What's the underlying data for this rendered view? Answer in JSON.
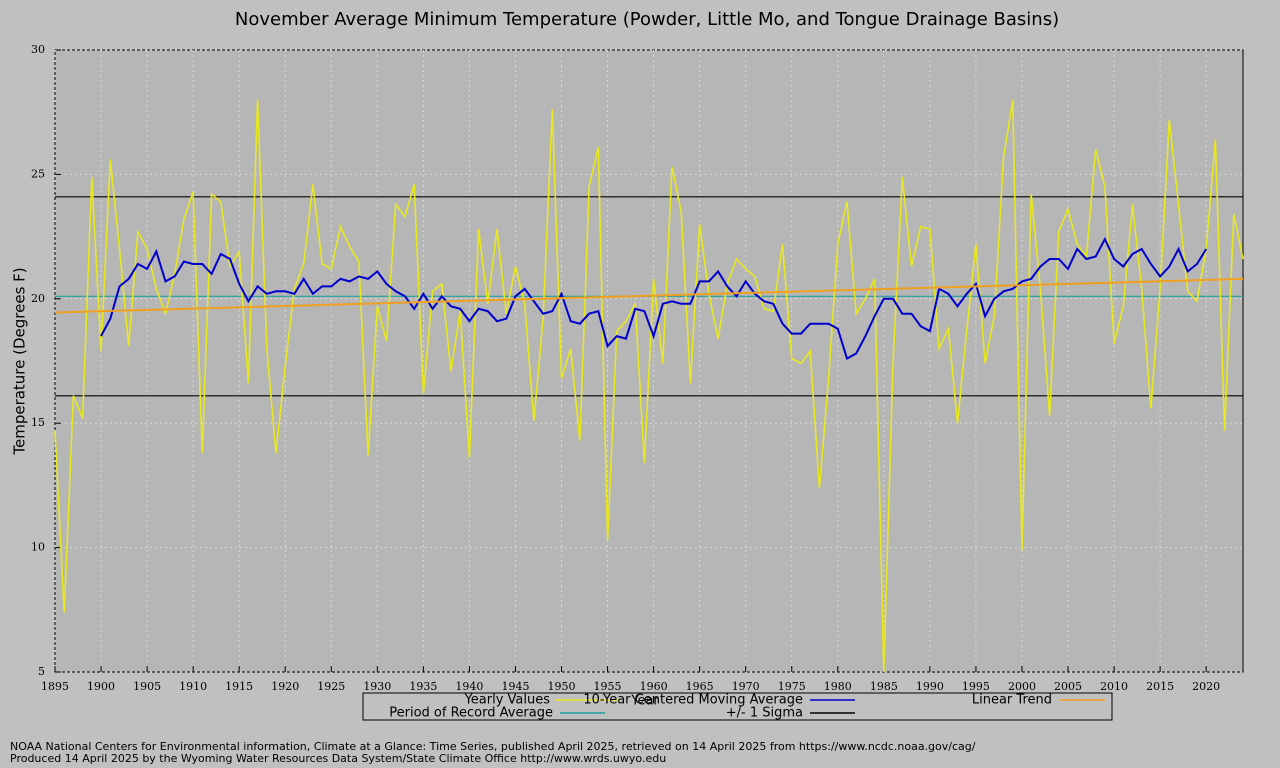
{
  "chart_data": {
    "type": "line",
    "title": "November Average Minimum Temperature (Powder, Little Mo, and Tongue Drainage Basins)",
    "xlabel": "Year",
    "ylabel": "Temperature (Degrees F)",
    "footnotes": [
      "NOAA National Centers for Environmental information, Climate at a Glance: Time Series, published April 2025, retrieved on 14 April 2025 from https://www.ncdc.noaa.gov/cag/",
      "Produced 14 April 2025 by the Wyoming Water Resources Data System/State Climate Office http://www.wrds.uwyo.edu"
    ],
    "xlim": [
      1895,
      2024
    ],
    "ylim": [
      5,
      30
    ],
    "xticks": [
      1895,
      1900,
      1905,
      1910,
      1915,
      1920,
      1925,
      1930,
      1935,
      1940,
      1945,
      1950,
      1955,
      1960,
      1965,
      1970,
      1975,
      1980,
      1985,
      1990,
      1995,
      2000,
      2005,
      2010,
      2015,
      2020
    ],
    "yticks": [
      5,
      10,
      15,
      20,
      25,
      30
    ],
    "grid": true,
    "x": [
      1895,
      1896,
      1897,
      1898,
      1899,
      1900,
      1901,
      1902,
      1903,
      1904,
      1905,
      1906,
      1907,
      1908,
      1909,
      1910,
      1911,
      1912,
      1913,
      1914,
      1915,
      1916,
      1917,
      1918,
      1919,
      1920,
      1921,
      1922,
      1923,
      1924,
      1925,
      1926,
      1927,
      1928,
      1929,
      1930,
      1931,
      1932,
      1933,
      1934,
      1935,
      1936,
      1937,
      1938,
      1939,
      1940,
      1941,
      1942,
      1943,
      1944,
      1945,
      1946,
      1947,
      1948,
      1949,
      1950,
      1951,
      1952,
      1953,
      1954,
      1955,
      1956,
      1957,
      1958,
      1959,
      1960,
      1961,
      1962,
      1963,
      1964,
      1965,
      1966,
      1967,
      1968,
      1969,
      1970,
      1971,
      1972,
      1973,
      1974,
      1975,
      1976,
      1977,
      1978,
      1979,
      1980,
      1981,
      1982,
      1983,
      1984,
      1985,
      1986,
      1987,
      1988,
      1989,
      1990,
      1991,
      1992,
      1993,
      1994,
      1995,
      1996,
      1997,
      1998,
      1999,
      2000,
      2001,
      2002,
      2003,
      2004,
      2005,
      2006,
      2007,
      2008,
      2009,
      2010,
      2011,
      2012,
      2013,
      2014,
      2015,
      2016,
      2017,
      2018,
      2019,
      2020,
      2021,
      2022,
      2023,
      2024
    ],
    "series": [
      {
        "name": "Yearly Values",
        "color": "#e8e820",
        "values": [
          14.7,
          7.4,
          16.1,
          15.2,
          24.9,
          17.9,
          25.6,
          22.0,
          18.1,
          22.7,
          22.0,
          20.4,
          19.4,
          21.0,
          23.2,
          24.3,
          13.8,
          24.2,
          23.9,
          21.3,
          21.9,
          16.6,
          28.0,
          18.0,
          13.8,
          17.3,
          20.4,
          21.4,
          24.6,
          21.4,
          21.2,
          22.9,
          22.1,
          21.5,
          13.7,
          19.7,
          18.3,
          23.8,
          23.3,
          24.6,
          16.2,
          20.3,
          20.6,
          17.1,
          19.5,
          13.6,
          22.8,
          19.8,
          22.8,
          19.4,
          21.3,
          19.8,
          15.1,
          19.2,
          27.6,
          16.8,
          18.0,
          14.3,
          24.5,
          26.1,
          10.3,
          18.7,
          19.1,
          19.8,
          13.4,
          20.8,
          17.4,
          25.3,
          23.5,
          16.6,
          23.0,
          20.2,
          18.4,
          20.6,
          21.6,
          21.2,
          20.9,
          19.6,
          19.5,
          22.2,
          17.6,
          17.4,
          17.9,
          12.4,
          16.8,
          22.2,
          23.9,
          19.4,
          20.0,
          20.8,
          5.0,
          17.4,
          24.9,
          21.3,
          22.9,
          22.8,
          18.0,
          18.8,
          15.0,
          18.7,
          22.2,
          17.4,
          19.3,
          25.7,
          28.0,
          9.9,
          24.2,
          20.4,
          15.3,
          22.7,
          23.6,
          22.2,
          21.7,
          26.0,
          24.5,
          18.2,
          19.7,
          23.8,
          20.4,
          15.6,
          20.4,
          27.2,
          23.8,
          20.3,
          19.9,
          22.0,
          26.4,
          14.7,
          23.4,
          21.6
        ]
      },
      {
        "name": "10-Year Centered Moving Average",
        "color": "#0000cc",
        "values": [
          null,
          null,
          null,
          null,
          null,
          18.5,
          19.2,
          20.5,
          20.8,
          21.4,
          21.2,
          21.9,
          20.7,
          20.9,
          21.5,
          21.4,
          21.4,
          21.0,
          21.8,
          21.6,
          20.6,
          19.9,
          20.5,
          20.2,
          20.3,
          20.3,
          20.2,
          20.8,
          20.2,
          20.5,
          20.5,
          20.8,
          20.7,
          20.9,
          20.8,
          21.1,
          20.6,
          20.3,
          20.1,
          19.6,
          20.2,
          19.6,
          20.1,
          19.7,
          19.6,
          19.1,
          19.6,
          19.5,
          19.1,
          19.2,
          20.1,
          20.4,
          19.9,
          19.4,
          19.5,
          20.2,
          19.1,
          19.0,
          19.4,
          19.5,
          18.1,
          18.5,
          18.4,
          19.6,
          19.5,
          18.5,
          19.8,
          19.9,
          19.8,
          19.8,
          20.7,
          20.7,
          21.1,
          20.5,
          20.1,
          20.7,
          20.2,
          19.9,
          19.8,
          19.0,
          18.6,
          18.6,
          19.0,
          19.0,
          19.0,
          18.8,
          17.6,
          17.8,
          18.5,
          19.3,
          20.0,
          20.0,
          19.4,
          19.4,
          18.9,
          18.7,
          20.4,
          20.2,
          19.7,
          20.2,
          20.6,
          19.3,
          20.0,
          20.3,
          20.4,
          20.7,
          20.8,
          21.3,
          21.6,
          21.6,
          21.2,
          22.0,
          21.6,
          21.7,
          22.4,
          21.6,
          21.3,
          21.8,
          22.0,
          21.4,
          20.9,
          21.3,
          22.0,
          21.1,
          21.4,
          22.0,
          null,
          null,
          null,
          null
        ]
      },
      {
        "name": "Linear Trend",
        "color": "#f0a020",
        "x": [
          1895,
          2024
        ],
        "values": [
          19.45,
          20.8
        ]
      }
    ],
    "reference_lines": [
      {
        "name": "Period of Record Average",
        "color": "#20a0a0",
        "values": [
          20.1
        ]
      },
      {
        "name": "+/- 1 Sigma",
        "color": "#000000",
        "values": [
          24.1,
          16.1
        ]
      }
    ]
  }
}
